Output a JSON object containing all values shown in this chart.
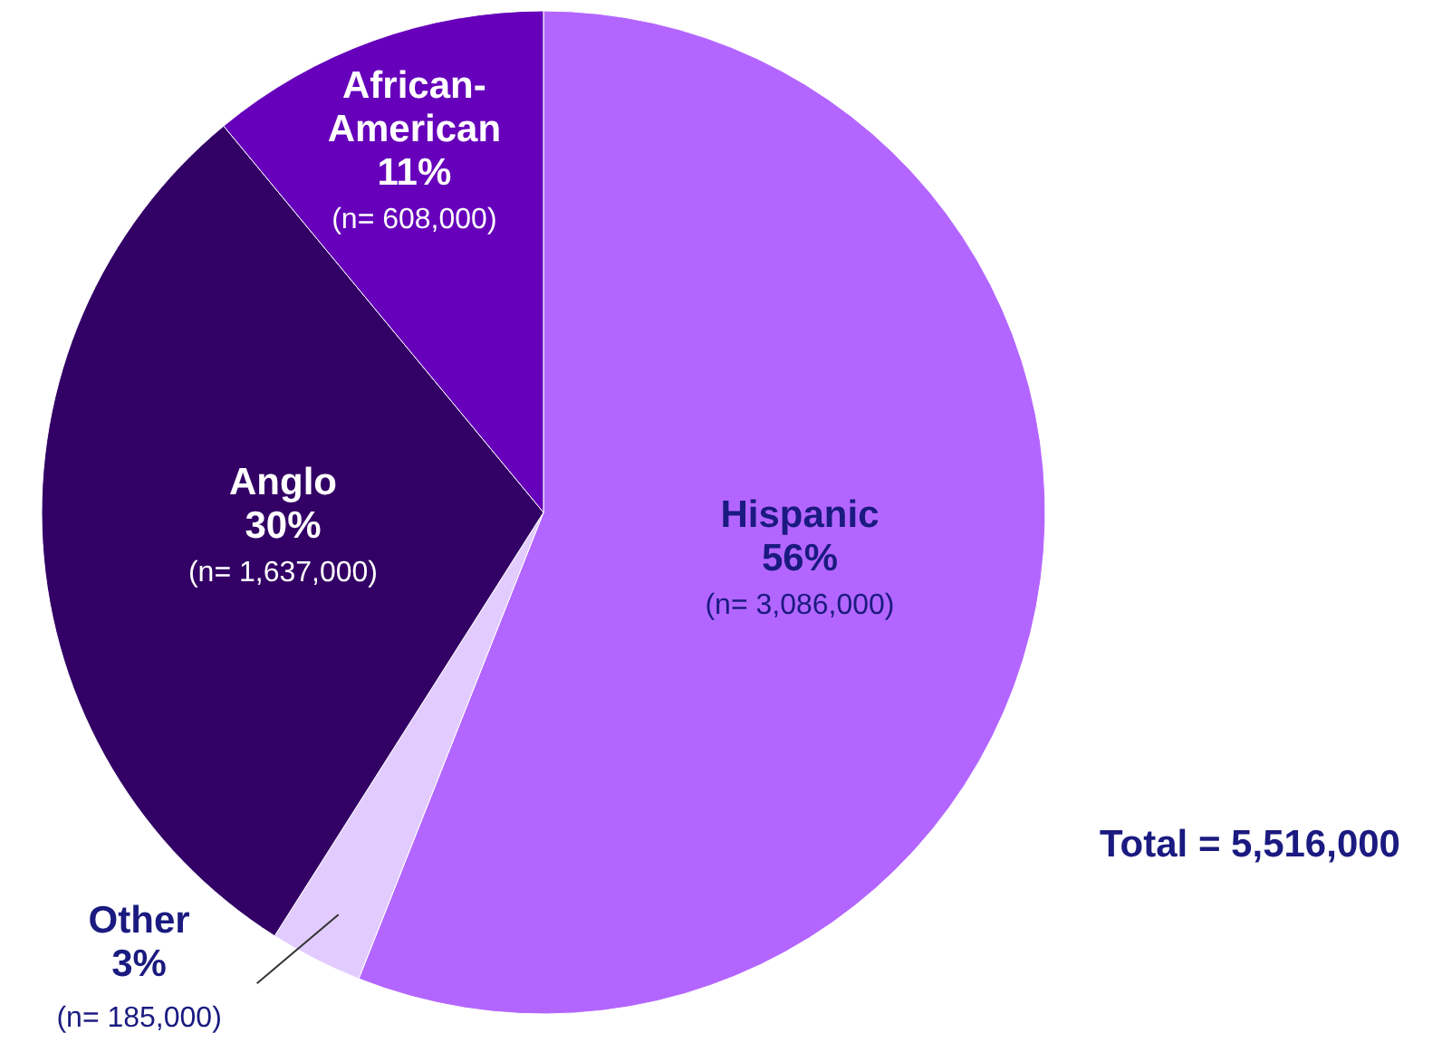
{
  "chart_data": {
    "type": "pie",
    "categories": [
      "Hispanic",
      "Other",
      "Anglo",
      "African-American"
    ],
    "values": [
      56,
      3,
      30,
      11
    ],
    "value_labels": [
      "56%\n(n= 3,086,000)",
      "3%\n(n= 185,000)",
      "30%\n(n= 1,637,000)",
      "11%\n(n= 608,000)"
    ],
    "colors": [
      "#b366ff",
      "#e2ccff",
      "#330066",
      "#6600bb"
    ],
    "annotations": [
      "Total = 5,516,000"
    ]
  }
}
